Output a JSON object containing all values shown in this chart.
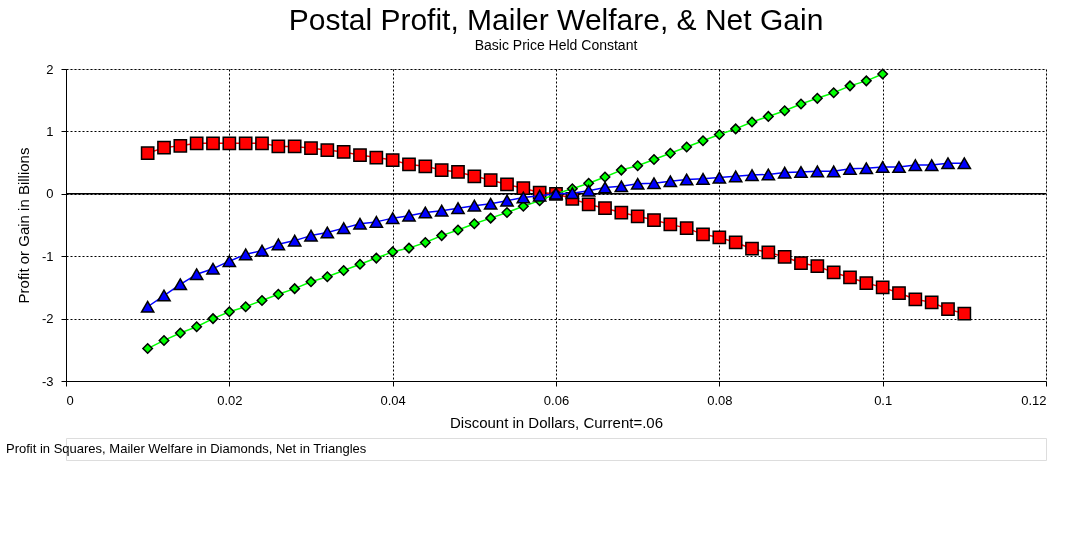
{
  "chart_data": {
    "type": "line",
    "title": "Postal Profit, Mailer Welfare, & Net Gain",
    "subtitle": "Basic Price Held Constant",
    "xlabel": "Discount in Dollars,   Current=.06",
    "ylabel": "Profit or Gain in Billions",
    "annotations": [
      "Profit in Squares, Mailer Welfare in Diamonds, Net in Triangles"
    ],
    "xlim": [
      0,
      0.12
    ],
    "xticks": [
      0,
      0.02,
      0.04,
      0.06,
      0.08,
      0.1,
      0.12
    ],
    "ylim": [
      -3,
      2
    ],
    "yticks": [
      -3,
      -2,
      -1,
      0,
      1,
      2
    ],
    "grid": true,
    "line_style": "solid",
    "ref_lines": [
      {
        "axis": "y",
        "value": 0,
        "color": "#000000",
        "line_style": "solid"
      }
    ],
    "series": [
      {
        "color": "#ff0000",
        "marker": "square",
        "x": [
          0.01,
          0.012,
          0.014,
          0.016,
          0.018,
          0.02,
          0.022,
          0.024,
          0.026,
          0.028,
          0.03,
          0.032,
          0.034,
          0.036,
          0.038,
          0.04,
          0.042,
          0.044,
          0.046,
          0.048,
          0.05,
          0.052,
          0.054,
          0.056,
          0.058,
          0.06,
          0.062,
          0.064,
          0.066,
          0.068,
          0.07,
          0.072,
          0.074,
          0.076,
          0.078,
          0.08,
          0.082,
          0.084,
          0.086,
          0.088,
          0.09,
          0.092,
          0.094,
          0.096,
          0.098,
          0.1,
          0.102,
          0.104,
          0.106,
          0.108,
          0.11
        ],
        "values": [
          0.65,
          0.74,
          0.77,
          0.81,
          0.81,
          0.81,
          0.81,
          0.81,
          0.76,
          0.76,
          0.73,
          0.7,
          0.67,
          0.62,
          0.58,
          0.54,
          0.47,
          0.44,
          0.38,
          0.35,
          0.28,
          0.22,
          0.15,
          0.09,
          0.02,
          0.0,
          -0.08,
          -0.17,
          -0.23,
          -0.3,
          -0.36,
          -0.42,
          -0.49,
          -0.55,
          -0.65,
          -0.7,
          -0.78,
          -0.88,
          -0.94,
          -1.01,
          -1.11,
          -1.16,
          -1.26,
          -1.34,
          -1.43,
          -1.5,
          -1.59,
          -1.69,
          -1.74,
          -1.85,
          -1.92
        ]
      },
      {
        "color": "#00ff00",
        "marker": "diamond",
        "x": [
          0.01,
          0.012,
          0.014,
          0.016,
          0.018,
          0.02,
          0.022,
          0.024,
          0.026,
          0.028,
          0.03,
          0.032,
          0.034,
          0.036,
          0.038,
          0.04,
          0.042,
          0.044,
          0.046,
          0.048,
          0.05,
          0.052,
          0.054,
          0.056,
          0.058,
          0.06,
          0.062,
          0.064,
          0.066,
          0.068,
          0.07,
          0.072,
          0.074,
          0.076,
          0.078,
          0.08,
          0.082,
          0.084,
          0.086,
          0.088,
          0.09,
          0.092,
          0.094,
          0.096,
          0.098,
          0.1
        ],
        "values": [
          -2.48,
          -2.35,
          -2.23,
          -2.13,
          -2.0,
          -1.89,
          -1.81,
          -1.71,
          -1.61,
          -1.52,
          -1.41,
          -1.33,
          -1.23,
          -1.13,
          -1.03,
          -0.93,
          -0.87,
          -0.78,
          -0.67,
          -0.58,
          -0.48,
          -0.39,
          -0.3,
          -0.2,
          -0.11,
          0.0,
          0.08,
          0.17,
          0.27,
          0.38,
          0.45,
          0.55,
          0.65,
          0.75,
          0.85,
          0.95,
          1.04,
          1.15,
          1.24,
          1.33,
          1.44,
          1.53,
          1.62,
          1.73,
          1.81,
          1.92
        ]
      },
      {
        "color": "#0000ff",
        "marker": "triangle",
        "x": [
          0.01,
          0.012,
          0.014,
          0.016,
          0.018,
          0.02,
          0.022,
          0.024,
          0.026,
          0.028,
          0.03,
          0.032,
          0.034,
          0.036,
          0.038,
          0.04,
          0.042,
          0.044,
          0.046,
          0.048,
          0.05,
          0.052,
          0.054,
          0.056,
          0.058,
          0.06,
          0.062,
          0.064,
          0.066,
          0.068,
          0.07,
          0.072,
          0.074,
          0.076,
          0.078,
          0.08,
          0.082,
          0.084,
          0.086,
          0.088,
          0.09,
          0.092,
          0.094,
          0.096,
          0.098,
          0.1,
          0.102,
          0.104,
          0.106,
          0.108,
          0.11
        ],
        "values": [
          -1.81,
          -1.63,
          -1.45,
          -1.29,
          -1.2,
          -1.08,
          -0.97,
          -0.91,
          -0.81,
          -0.75,
          -0.67,
          -0.62,
          -0.55,
          -0.48,
          -0.45,
          -0.39,
          -0.35,
          -0.3,
          -0.27,
          -0.23,
          -0.19,
          -0.16,
          -0.11,
          -0.06,
          -0.03,
          0.0,
          0.01,
          0.05,
          0.1,
          0.12,
          0.16,
          0.17,
          0.2,
          0.23,
          0.24,
          0.26,
          0.28,
          0.3,
          0.31,
          0.34,
          0.35,
          0.36,
          0.36,
          0.4,
          0.41,
          0.43,
          0.43,
          0.46,
          0.46,
          0.49,
          0.49
        ]
      }
    ]
  }
}
